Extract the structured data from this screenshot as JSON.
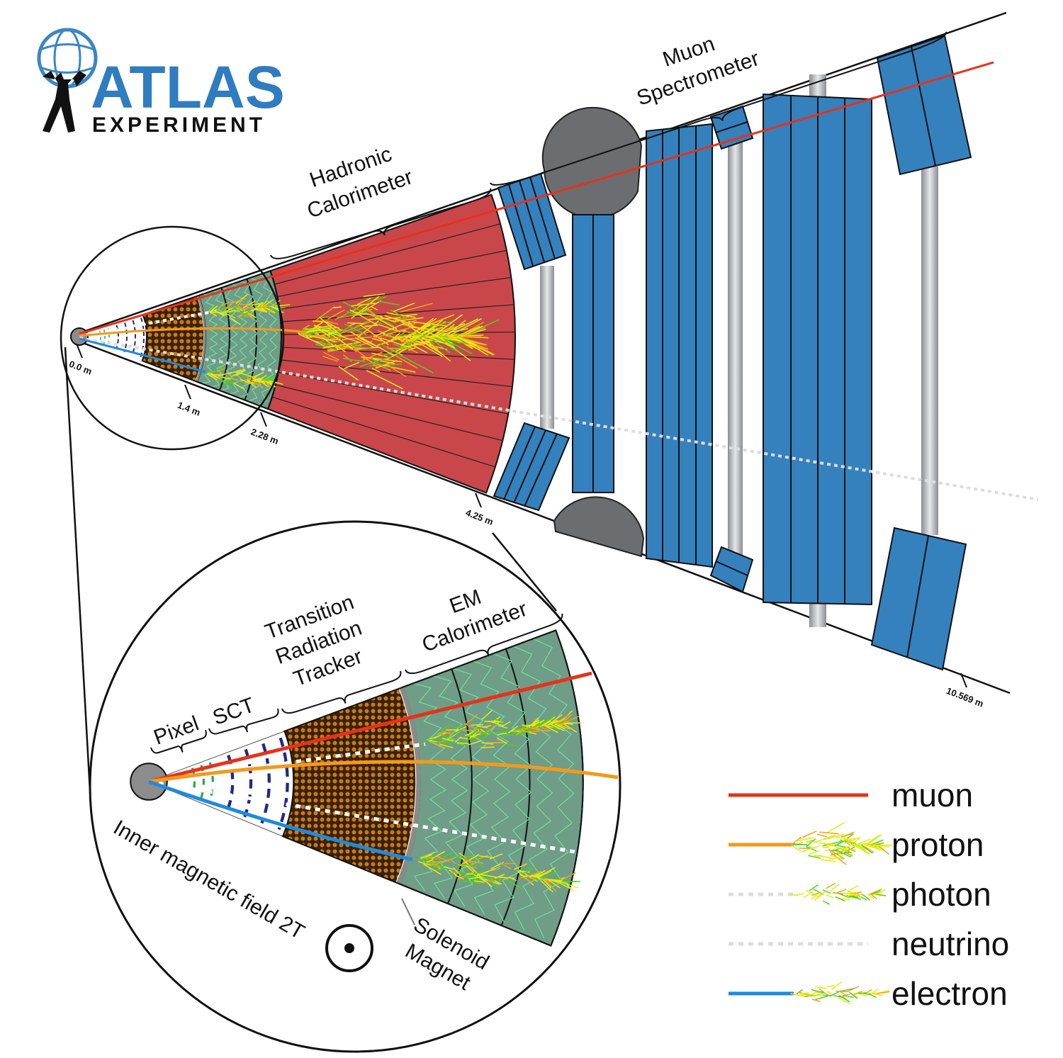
{
  "logo": {
    "title": "ATLAS",
    "subtitle": "EXPERIMENT"
  },
  "main_labels": {
    "hadronic_calorimeter": [
      "Hadronic",
      "Calorimeter"
    ],
    "muon_spectrometer": [
      "Muon",
      "Spectrometer"
    ]
  },
  "scale": [
    "0.0 m",
    "1.4 m",
    "2.28 m",
    "4.25 m",
    "10.569 m"
  ],
  "inset_labels": {
    "pixel": "Pixel",
    "sct": "SCT",
    "trt": [
      "Transition",
      "Radiation",
      "Tracker"
    ],
    "em_calorimeter": [
      "EM",
      "Calorimeter"
    ],
    "field": "Inner magnetic field 2T",
    "solenoid": [
      "Solenoid",
      "Magnet"
    ]
  },
  "legend": [
    "muon",
    "proton",
    "photon",
    "neutrino",
    "electron"
  ]
}
